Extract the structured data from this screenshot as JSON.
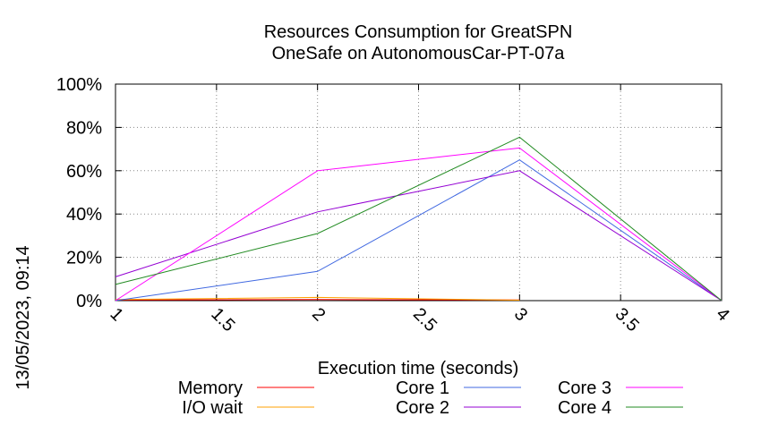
{
  "chart_data": {
    "type": "line",
    "title": "Resources Consumption for GreatSPN",
    "subtitle": "OneSafe on AutonomousCar-PT-07a",
    "xlabel": "Execution time (seconds)",
    "ylabel": "",
    "side_label": "13/05/2023, 09:14",
    "xlim": [
      1,
      4
    ],
    "ylim": [
      0,
      100
    ],
    "x_ticks": [
      1,
      1.5,
      2,
      2.5,
      3,
      3.5,
      4
    ],
    "x_tick_labels": [
      "1",
      "1.5",
      "2",
      "2.5",
      "3",
      "3.5",
      "4"
    ],
    "y_ticks": [
      0,
      20,
      40,
      60,
      80,
      100
    ],
    "y_tick_labels": [
      "0%",
      "20%",
      "40%",
      "60%",
      "80%",
      "100%"
    ],
    "grid": true,
    "legend_position": "bottom",
    "series": [
      {
        "name": "Memory",
        "color": "#ff0000",
        "x": [
          1,
          2,
          3
        ],
        "y": [
          0.3,
          0.5,
          0.3
        ]
      },
      {
        "name": "I/O wait",
        "color": "#ffa000",
        "x": [
          1,
          2,
          3
        ],
        "y": [
          0.5,
          1.5,
          0.2
        ]
      },
      {
        "name": "Core 1",
        "color": "#4169e1",
        "x": [
          1,
          2,
          3,
          4
        ],
        "y": [
          0,
          13.5,
          65,
          0
        ]
      },
      {
        "name": "Core 2",
        "color": "#9400d3",
        "x": [
          1,
          2,
          3,
          4
        ],
        "y": [
          11,
          41,
          60,
          0
        ]
      },
      {
        "name": "Core 3",
        "color": "#ff00ff",
        "x": [
          1,
          2,
          3,
          4
        ],
        "y": [
          0,
          60,
          70.5,
          0
        ]
      },
      {
        "name": "Core 4",
        "color": "#228b22",
        "x": [
          1,
          2,
          3,
          4
        ],
        "y": [
          7.5,
          31,
          75.5,
          0
        ]
      }
    ]
  }
}
